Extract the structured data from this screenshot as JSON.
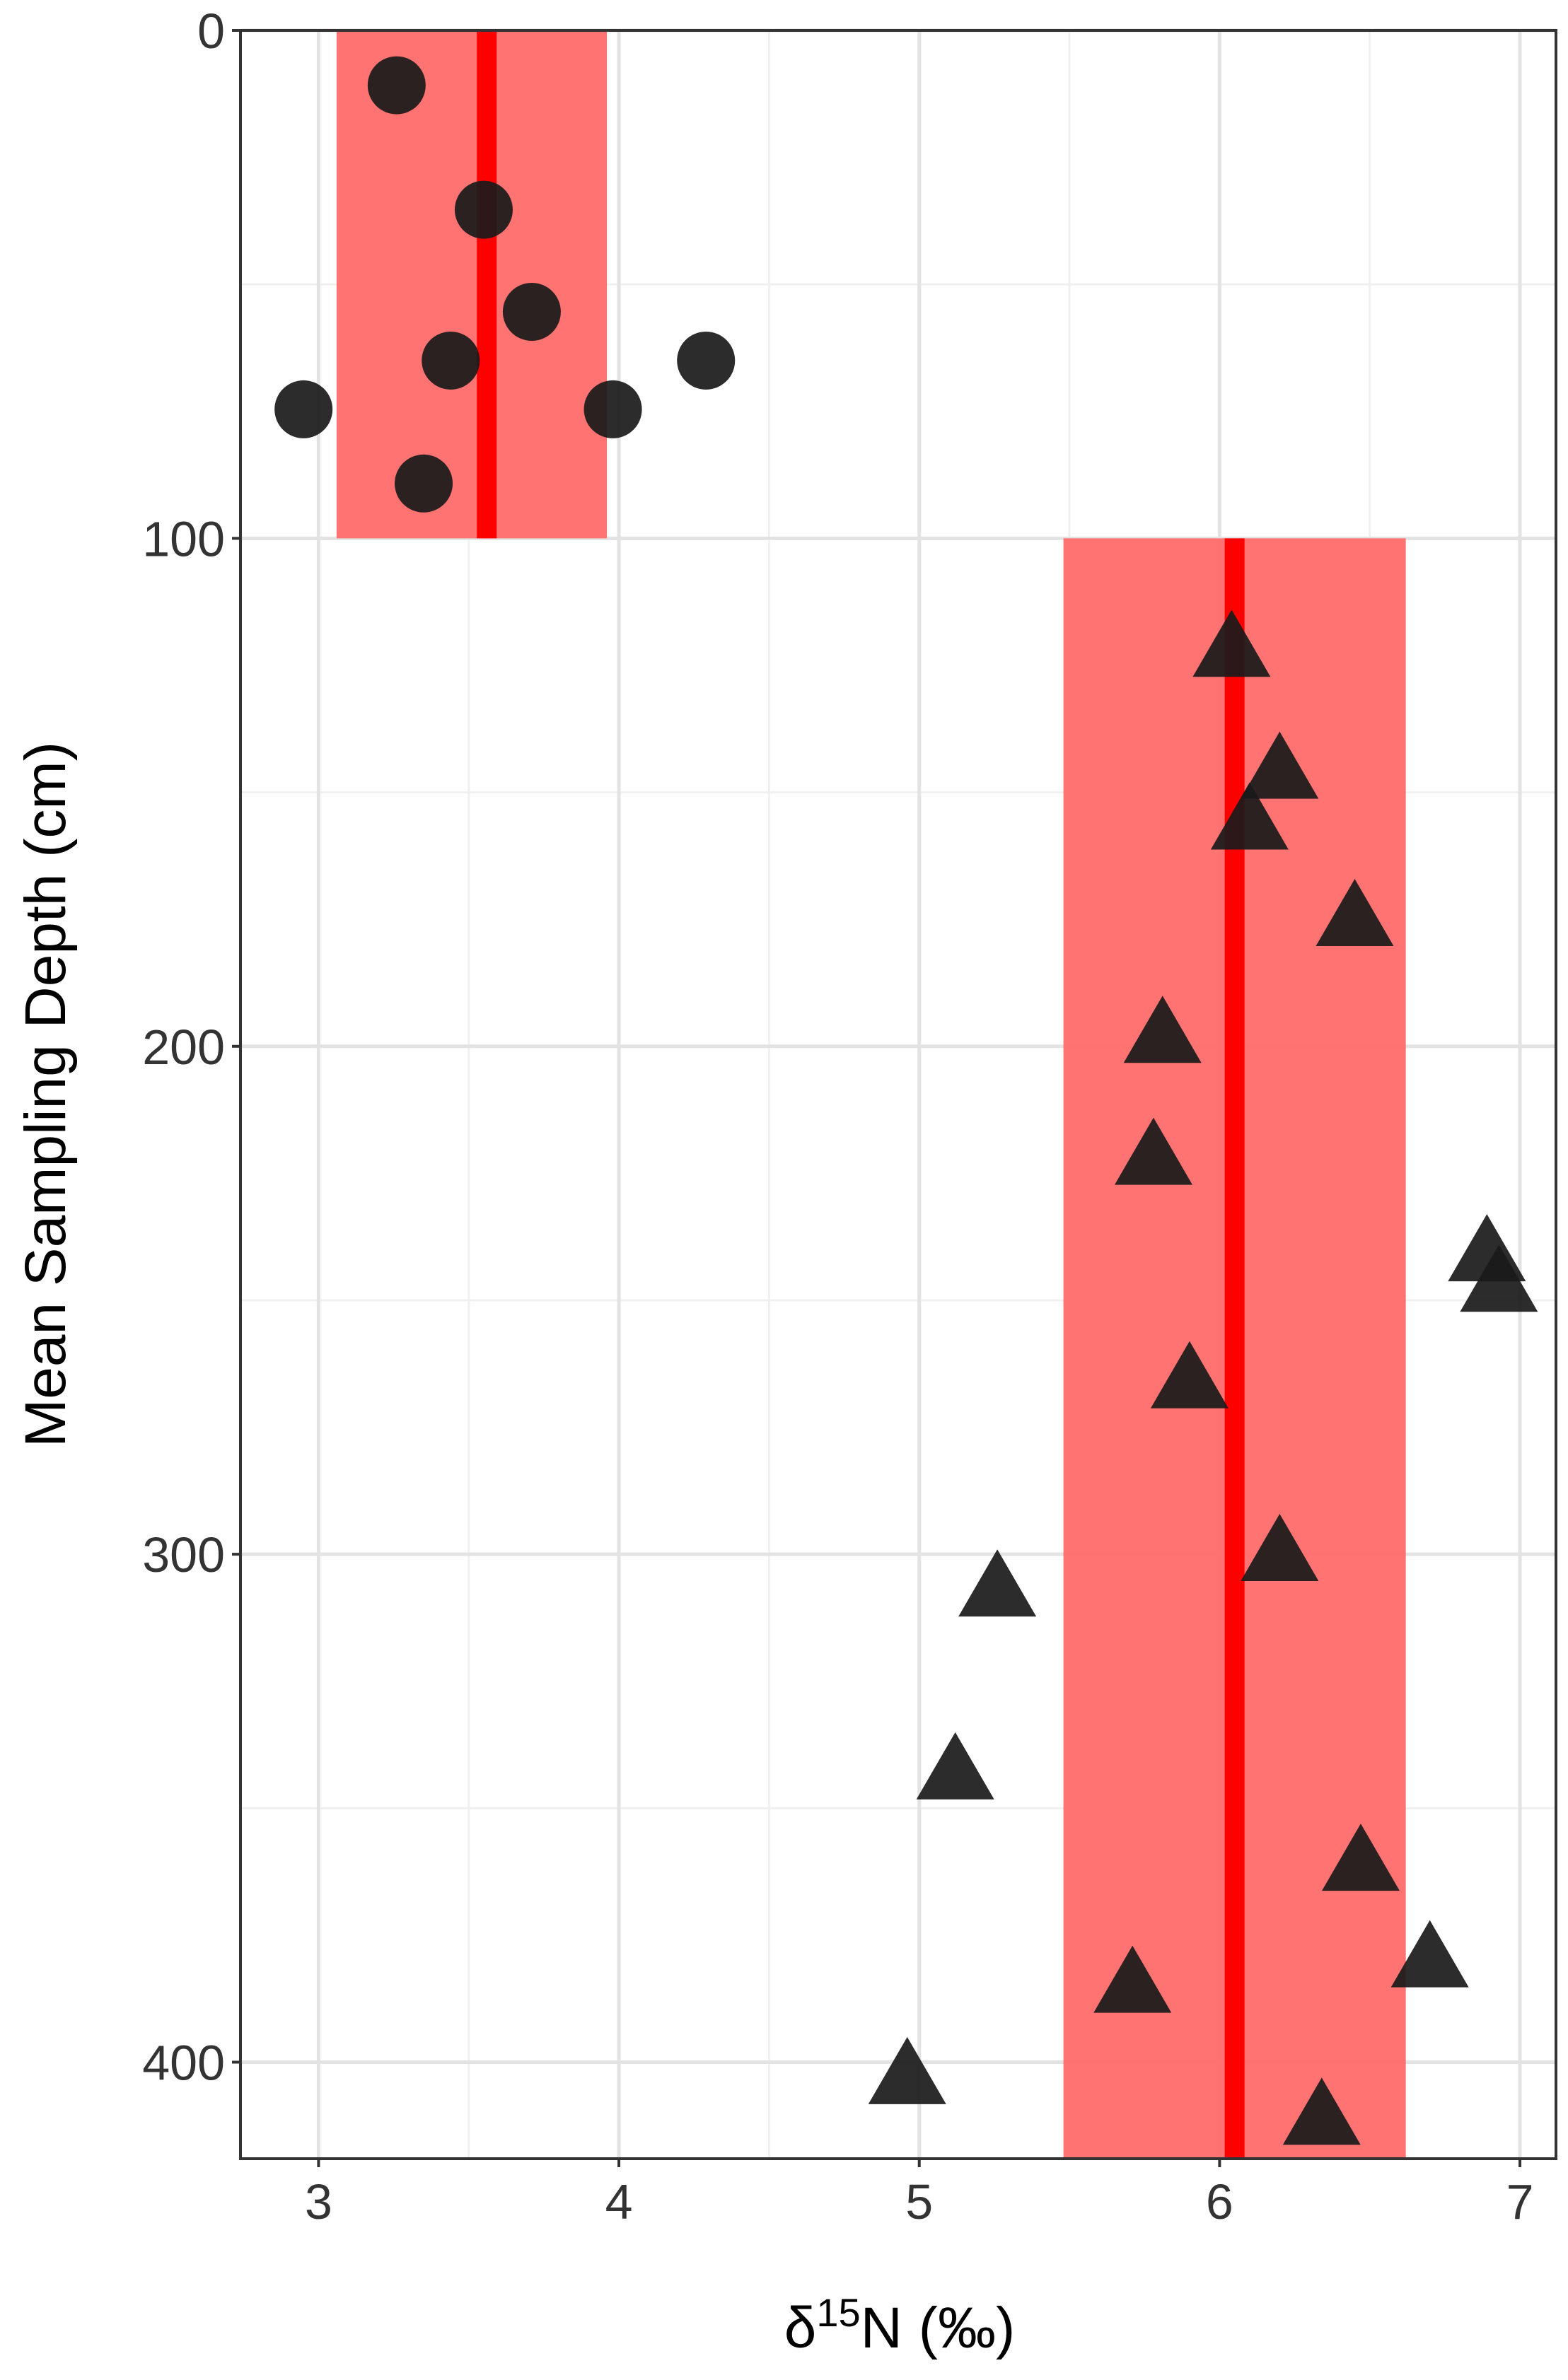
{
  "chart_data": {
    "type": "scatter",
    "x_label": {
      "prefix": "δ",
      "superscript": "15",
      "suffix": "N (‰)"
    },
    "y_label": "Mean Sampling Depth (cm)",
    "xlim": [
      2.74,
      7.12
    ],
    "xticks": [
      3,
      4,
      5,
      6,
      7
    ],
    "ylim": [
      0,
      419
    ],
    "yticks": [
      0,
      100,
      200,
      300,
      400
    ],
    "y_reversed": true,
    "grid": true,
    "minor_grid": true,
    "bands": [
      {
        "xmin": 3.06,
        "xmax": 3.96,
        "ymin": 0,
        "ymax": 100,
        "median": 3.56
      },
      {
        "xmin": 5.48,
        "xmax": 6.62,
        "ymin": 100,
        "ymax": 419,
        "median": 6.05
      }
    ],
    "band_color": "#ff6b6b",
    "median_color": "#ff0000",
    "series": [
      {
        "shape": "circle",
        "color": "#1a1a1a",
        "x": [
          3.26,
          3.55,
          3.71,
          3.44,
          4.29,
          2.95,
          3.98,
          3.35
        ],
        "y": [
          10.8,
          35.3,
          55.4,
          65,
          65,
          74.6,
          74.6,
          89.2
        ]
      },
      {
        "shape": "triangle",
        "color": "#1a1a1a",
        "x": [
          6.04,
          6.2,
          6.1,
          6.45,
          5.81,
          5.78,
          6.89,
          6.93,
          5.9,
          6.2,
          5.26,
          5.12,
          6.47,
          6.7,
          5.71,
          4.96,
          6.34
        ],
        "y": [
          121,
          145,
          155,
          174,
          197,
          221,
          240,
          246,
          265,
          299,
          306,
          342,
          360,
          379,
          384,
          402,
          410
        ]
      }
    ]
  }
}
